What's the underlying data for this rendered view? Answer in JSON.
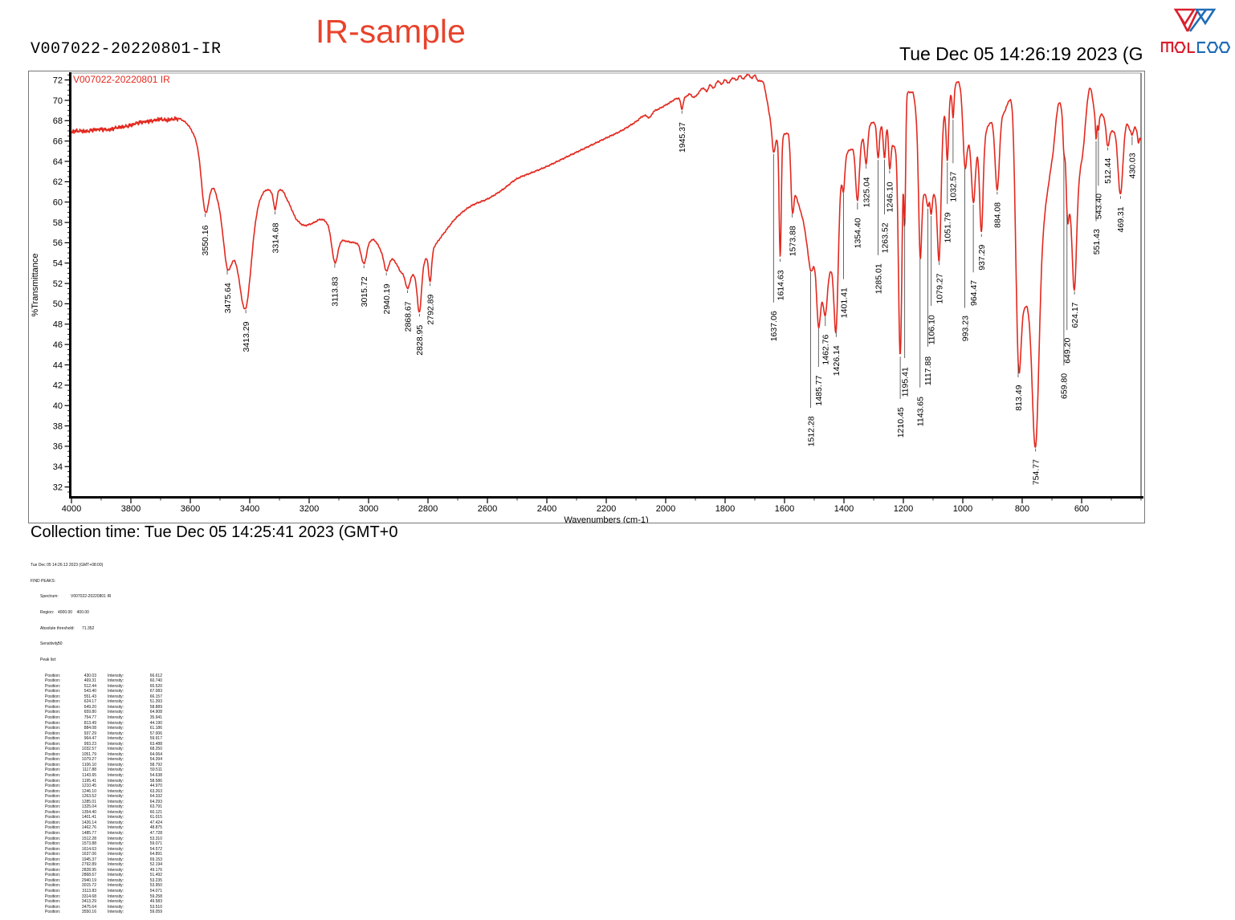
{
  "header": {
    "sample_id": "V007022-20220801-IR",
    "title": "IR-sample",
    "datetime": "Tue Dec 05 14:26:19 2023 (G",
    "logo": {
      "name": "molecoo-logo",
      "text": "MOLCOO",
      "red": "#D91F2E",
      "blue": "#1E6DB6"
    }
  },
  "collection_time": "Collection time: Tue Dec 05 14:25:41 2023 (GMT+0",
  "chart_data": {
    "type": "line",
    "title": "",
    "legend": "V007022-20220801 IR",
    "xlabel": "Wavenumbers (cm-1)",
    "ylabel": "%Transmittance",
    "line_color": "#e2291f",
    "x_axis": {
      "min": 400,
      "max": 4000,
      "reversed": true,
      "major_step": 200,
      "minor_step": 100,
      "labels": [
        4000,
        3800,
        3600,
        3400,
        3200,
        3000,
        2800,
        2600,
        2400,
        2200,
        2000,
        1800,
        1600,
        1400,
        1200,
        1000,
        800,
        600
      ]
    },
    "y_axis": {
      "min": 31.1,
      "max": 72.6,
      "major_step": 2,
      "minor_step": 0.5,
      "labels": [
        72,
        70,
        68,
        66,
        64,
        62,
        60,
        58,
        56,
        54,
        52,
        50,
        48,
        46,
        44,
        42,
        40,
        38,
        36,
        34,
        32
      ]
    },
    "peaks": [
      {
        "p": 430.03,
        "i": 66.612,
        "w": 4
      },
      {
        "p": 469.31,
        "i": 60.74,
        "w": 8
      },
      {
        "p": 512.44,
        "i": 65.52,
        "w": 5
      },
      {
        "p": 543.4,
        "i": 67.083,
        "w": 2
      },
      {
        "p": 551.43,
        "i": 66.157,
        "w": 2
      },
      {
        "p": 624.17,
        "i": 51.393,
        "w": 7
      },
      {
        "p": 649.2,
        "i": 58.889,
        "w": 4
      },
      {
        "p": 659.8,
        "i": 64.908,
        "w": 3
      },
      {
        "p": 754.77,
        "i": 35.941,
        "w": 11
      },
      {
        "p": 813.49,
        "i": 44.19,
        "w": 9
      },
      {
        "p": 884.08,
        "i": 61.186,
        "w": 7
      },
      {
        "p": 937.29,
        "i": 57.006,
        "w": 5.5
      },
      {
        "p": 964.47,
        "i": 59.917,
        "w": 6
      },
      {
        "p": 993.23,
        "i": 63.488,
        "w": 6
      },
      {
        "p": 1032.57,
        "i": 68.25,
        "w": 3
      },
      {
        "p": 1051.79,
        "i": 64.064,
        "w": 4
      },
      {
        "p": 1079.27,
        "i": 54.394,
        "w": 6
      },
      {
        "p": 1106.1,
        "i": 58.792,
        "w": 3
      },
      {
        "p": 1117.88,
        "i": 59.511,
        "w": 3
      },
      {
        "p": 1143.65,
        "i": 54.638,
        "w": 5
      },
      {
        "p": 1195.41,
        "i": 58.586,
        "w": 3
      },
      {
        "p": 1210.45,
        "i": 44.97,
        "w": 6
      },
      {
        "p": 1246.1,
        "i": 63.263,
        "w": 4
      },
      {
        "p": 1263.52,
        "i": 64.332,
        "w": 4
      },
      {
        "p": 1285.01,
        "i": 64.293,
        "w": 4
      },
      {
        "p": 1325.04,
        "i": 63.791,
        "w": 5
      },
      {
        "p": 1354.4,
        "i": 60.121,
        "w": 6
      },
      {
        "p": 1401.41,
        "i": 61.015,
        "w": 4
      },
      {
        "p": 1426.14,
        "i": 47.424,
        "w": 7
      },
      {
        "p": 1462.76,
        "i": 48.875,
        "w": 6
      },
      {
        "p": 1485.77,
        "i": 47.728,
        "w": 6
      },
      {
        "p": 1512.28,
        "i": 53.31,
        "w": 8
      },
      {
        "p": 1573.88,
        "i": 59.071,
        "w": 5
      },
      {
        "p": 1614.63,
        "i": 54.572,
        "w": 3.5
      },
      {
        "p": 1637.06,
        "i": 64.891,
        "w": 5
      },
      {
        "p": 1945.37,
        "i": 69.153,
        "w": 4
      },
      {
        "p": 2792.89,
        "i": 52.194,
        "w": 5
      },
      {
        "p": 2828.95,
        "i": 49.176,
        "w": 7
      },
      {
        "p": 2868.67,
        "i": 51.492,
        "w": 7
      },
      {
        "p": 2940.19,
        "i": 53.235,
        "w": 8
      },
      {
        "p": 3015.72,
        "i": 53.95,
        "w": 9
      },
      {
        "p": 3113.83,
        "i": 54.071,
        "w": 10
      },
      {
        "p": 3314.68,
        "i": 59.258,
        "w": 5
      },
      {
        "p": 3413.29,
        "i": 49.583,
        "w": 18
      },
      {
        "p": 3475.64,
        "i": 53.51,
        "w": 12
      },
      {
        "p": 3550.16,
        "i": 59.059,
        "w": 12
      }
    ],
    "envelope": [
      [
        400,
        66.0
      ],
      [
        404,
        66.3
      ],
      [
        408,
        65.8
      ],
      [
        415,
        67.0
      ],
      [
        422,
        67.4
      ],
      [
        438,
        67.2
      ],
      [
        447,
        67.8
      ],
      [
        500,
        67.0
      ],
      [
        533,
        68.6
      ],
      [
        548,
        67.8
      ],
      [
        572,
        71.2
      ],
      [
        600,
        64.0
      ],
      [
        643,
        59.8
      ],
      [
        655,
        65.8
      ],
      [
        675,
        69.8
      ],
      [
        700,
        64.0
      ],
      [
        788,
        50.2
      ],
      [
        835,
        70.4
      ],
      [
        862,
        68.8
      ],
      [
        908,
        67.8
      ],
      [
        950,
        65.2
      ],
      [
        980,
        66.2
      ],
      [
        1015,
        71.8
      ],
      [
        1042,
        70.6
      ],
      [
        1062,
        68.8
      ],
      [
        1095,
        61.0
      ],
      [
        1112,
        60.3
      ],
      [
        1130,
        61.0
      ],
      [
        1170,
        70.8
      ],
      [
        1185,
        70.8
      ],
      [
        1232,
        65.5
      ],
      [
        1255,
        67.8
      ],
      [
        1275,
        67.6
      ],
      [
        1305,
        67.8
      ],
      [
        1340,
        66.3
      ],
      [
        1370,
        65.3
      ],
      [
        1385,
        65.0
      ],
      [
        1410,
        62.5
      ],
      [
        1445,
        53.5
      ],
      [
        1472,
        51.3
      ],
      [
        1498,
        54.3
      ],
      [
        1525,
        56.5
      ],
      [
        1540,
        58.5
      ],
      [
        1560,
        60.6
      ],
      [
        1588,
        66.8
      ],
      [
        1622,
        66.3
      ],
      [
        1650,
        68.5
      ],
      [
        1660,
        70.2
      ],
      [
        1675,
        71.9
      ],
      [
        1688,
        71.9
      ],
      [
        1700,
        72.45
      ],
      [
        1710,
        72.2
      ],
      [
        1725,
        72.55
      ],
      [
        1738,
        72.1
      ],
      [
        1750,
        72.4
      ],
      [
        1762,
        72.0
      ],
      [
        1775,
        72.2
      ],
      [
        1788,
        71.7
      ],
      [
        1800,
        72.0
      ],
      [
        1812,
        71.6
      ],
      [
        1825,
        71.9
      ],
      [
        1838,
        71.2
      ],
      [
        1850,
        71.5
      ],
      [
        1862,
        70.9
      ],
      [
        1875,
        71.2
      ],
      [
        1890,
        70.7
      ],
      [
        1905,
        70.3
      ],
      [
        1920,
        70.6
      ],
      [
        1935,
        70.3
      ],
      [
        1960,
        70.2
      ],
      [
        1990,
        69.7
      ],
      [
        2020,
        69.2
      ],
      [
        2040,
        68.9
      ],
      [
        2055,
        68.3
      ],
      [
        2070,
        68.5
      ],
      [
        2100,
        67.9
      ],
      [
        2150,
        67.0
      ],
      [
        2200,
        66.3
      ],
      [
        2250,
        65.6
      ],
      [
        2300,
        64.9
      ],
      [
        2350,
        64.2
      ],
      [
        2400,
        63.5
      ],
      [
        2450,
        62.9
      ],
      [
        2500,
        62.3
      ],
      [
        2550,
        61.2
      ],
      [
        2600,
        60.3
      ],
      [
        2650,
        59.7
      ],
      [
        2700,
        58.6
      ],
      [
        2750,
        56.8
      ],
      [
        2775,
        55.8
      ],
      [
        2805,
        54.6
      ],
      [
        2850,
        52.9
      ],
      [
        2885,
        53.0
      ],
      [
        2915,
        54.3
      ],
      [
        2955,
        55.2
      ],
      [
        2985,
        56.3
      ],
      [
        3040,
        56.0
      ],
      [
        3080,
        56.2
      ],
      [
        3160,
        58.3
      ],
      [
        3190,
        57.9
      ],
      [
        3215,
        57.7
      ],
      [
        3240,
        58.2
      ],
      [
        3270,
        60.0
      ],
      [
        3295,
        61.2
      ],
      [
        3322,
        61.0
      ],
      [
        3340,
        61.2
      ],
      [
        3450,
        55.4
      ],
      [
        3525,
        61.9
      ],
      [
        3595,
        67.0
      ],
      [
        3615,
        67.8
      ],
      [
        3640,
        68.2
      ],
      [
        3660,
        68.15
      ],
      [
        3680,
        68.05
      ],
      [
        3700,
        68.15
      ],
      [
        3725,
        68.0
      ],
      [
        3750,
        67.9
      ],
      [
        3775,
        67.8
      ],
      [
        3800,
        67.55
      ],
      [
        3825,
        67.4
      ],
      [
        3850,
        67.3
      ],
      [
        3875,
        67.1
      ],
      [
        3900,
        67.15
      ],
      [
        3925,
        67.1
      ],
      [
        3950,
        66.95
      ],
      [
        3975,
        67.0
      ],
      [
        4000,
        66.9
      ]
    ]
  },
  "report": {
    "timestamp": "Tue Dec 05 14:26:13 2023 (GMT+08:00)",
    "heading": "FIND PEAKS:",
    "fields": [
      {
        "label": "Spectrum:",
        "value": "V007022-20220801 IR"
      },
      {
        "label": "Region:",
        "value": "4000.00    400.00"
      },
      {
        "label": "Absolute threshold:",
        "value": "71.352"
      },
      {
        "label": "Sensitivity:",
        "value": "50"
      }
    ],
    "peak_list_label": "Peak list:",
    "position_label": "Position:",
    "intensity_label": "Intensity:"
  }
}
